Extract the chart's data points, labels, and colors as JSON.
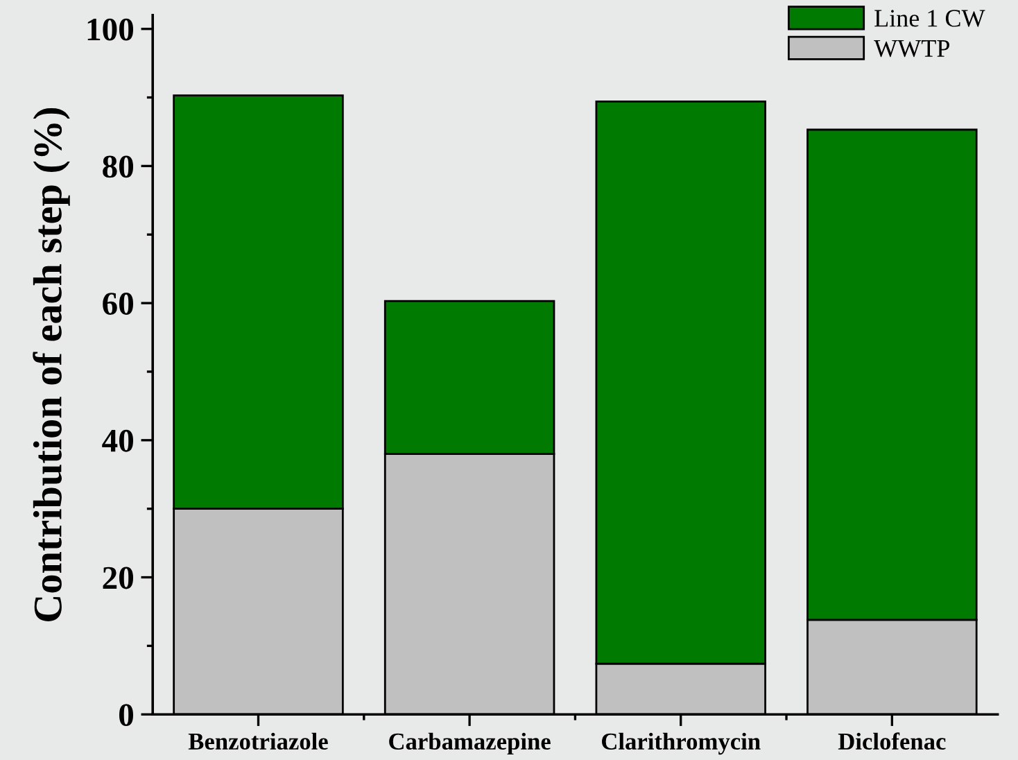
{
  "chart_data": {
    "type": "bar",
    "stacked": true,
    "ylabel": "Contribution of each step (%)",
    "categories": [
      "Benzotriazole",
      "Carbamazepine",
      "Clarithromycin",
      "Diclofenac"
    ],
    "series": [
      {
        "name": "WWTP",
        "color": "#c0c0c0",
        "values": [
          30,
          38,
          7.4,
          13.8
        ]
      },
      {
        "name": "Line 1 CW",
        "color": "#007a00",
        "values": [
          60.3,
          22.3,
          82,
          71.5
        ]
      }
    ],
    "ylim": [
      0,
      102
    ],
    "yticks": [
      0,
      20,
      40,
      60,
      80,
      100
    ],
    "grid": false,
    "legend": "top right"
  }
}
